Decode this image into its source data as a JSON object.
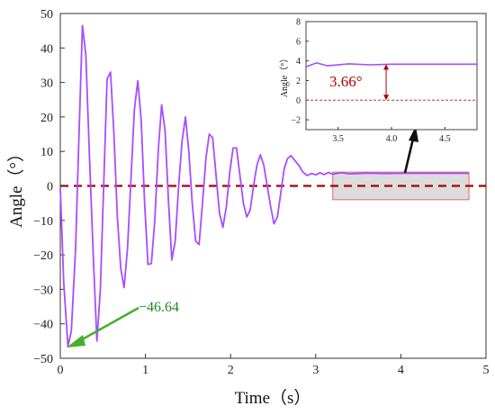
{
  "chart_data": {
    "type": "line",
    "xlabel": "Time（s）",
    "ylabel": "Angle（°）",
    "xlim": [
      0,
      5
    ],
    "ylim": [
      -50,
      50
    ],
    "xticks": [
      0,
      1,
      2,
      3,
      4,
      5
    ],
    "yticks": [
      -50,
      -40,
      -30,
      -20,
      -10,
      0,
      10,
      20,
      30,
      40,
      50
    ],
    "grid": false,
    "series": [
      {
        "color": "#a64dff",
        "x": [
          0.0,
          0.04,
          0.09,
          0.13,
          0.18,
          0.22,
          0.26,
          0.3,
          0.34,
          0.39,
          0.43,
          0.47,
          0.51,
          0.55,
          0.59,
          0.63,
          0.67,
          0.71,
          0.75,
          0.79,
          0.83,
          0.87,
          0.91,
          0.95,
          0.99,
          1.03,
          1.07,
          1.11,
          1.15,
          1.19,
          1.23,
          1.27,
          1.31,
          1.35,
          1.39,
          1.43,
          1.47,
          1.51,
          1.55,
          1.59,
          1.63,
          1.67,
          1.71,
          1.75,
          1.79,
          1.83,
          1.87,
          1.91,
          1.95,
          1.99,
          2.03,
          2.07,
          2.11,
          2.15,
          2.19,
          2.23,
          2.27,
          2.31,
          2.35,
          2.39,
          2.43,
          2.47,
          2.51,
          2.55,
          2.59,
          2.63,
          2.67,
          2.71,
          2.75,
          2.8,
          2.85,
          2.9,
          2.95,
          3.0,
          3.05,
          3.1,
          3.15,
          3.2,
          3.3,
          3.4,
          3.6,
          3.8,
          4.0,
          4.2,
          4.4,
          4.6,
          4.8
        ],
        "y": [
          -0.5,
          -28,
          -46.64,
          -42,
          -18,
          15,
          46.5,
          38,
          10,
          -22,
          -45,
          -30,
          0,
          31,
          33,
          15,
          -9,
          -24,
          -29.5,
          -18,
          2,
          22,
          30.5,
          19,
          -5,
          -22.8,
          -22.5,
          -10,
          10,
          23.5,
          16,
          -4,
          -21.5,
          -16,
          0,
          13,
          20,
          10,
          -5,
          -16,
          -17,
          -5,
          8,
          15,
          14,
          3,
          -8,
          -12,
          -6,
          4,
          11,
          11,
          3,
          -5,
          -9,
          -7,
          0,
          6,
          9,
          6,
          0,
          -6,
          -11,
          -9,
          -2,
          5,
          8,
          8.8,
          7.5,
          6,
          4,
          3,
          3.6,
          3.2,
          3.8,
          3.3,
          3.9,
          3.4,
          3.8,
          3.5,
          3.7,
          3.6,
          3.66,
          3.66,
          3.66,
          3.66,
          3.66
        ]
      }
    ],
    "reference_line": {
      "y": 0,
      "color": "#aa0000",
      "style": "dashed"
    },
    "annotations": [
      {
        "text": "−46.64",
        "x": 0.09,
        "y": -46.64,
        "color": "#1d8a1d"
      }
    ],
    "highlight_region": {
      "x": [
        3.2,
        4.8
      ],
      "y": [
        -4,
        4
      ]
    },
    "inset": {
      "ylabel": "Angle（°）",
      "xlim": [
        3.2,
        4.8
      ],
      "ylim": [
        -3,
        8
      ],
      "xticks": [
        3.5,
        4.0,
        4.5
      ],
      "yticks": [
        -2,
        0,
        2,
        4,
        6,
        8
      ],
      "annotation": {
        "text": "3.66°",
        "color": "#aa0000"
      }
    }
  }
}
